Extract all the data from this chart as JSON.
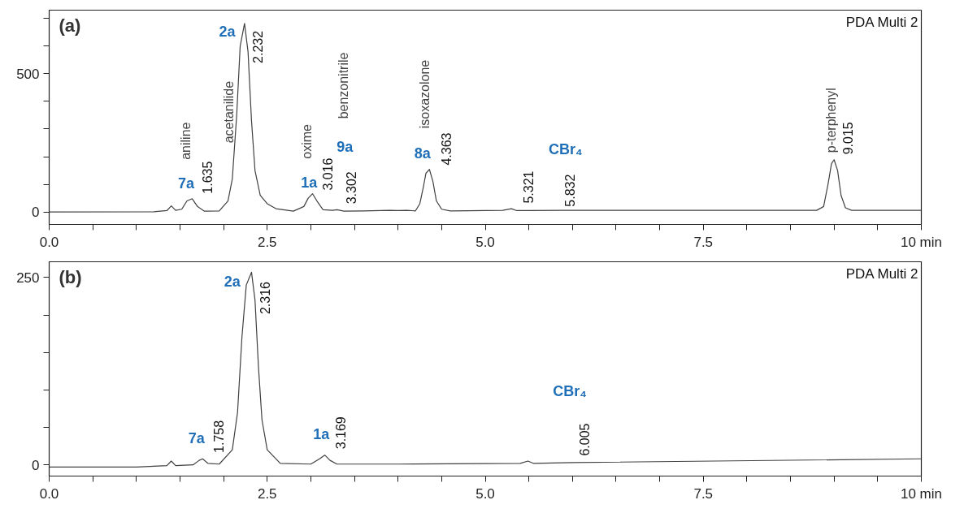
{
  "chart_data": [
    {
      "type": "line",
      "xlim": [
        0,
        10
      ],
      "ylim": [
        -45,
        730
      ],
      "grid": false,
      "marker": "none",
      "xticks": [
        {
          "value": 0,
          "label": "0.0"
        },
        {
          "value": 0.5,
          "label": null
        },
        {
          "value": 1,
          "label": null
        },
        {
          "value": 1.5,
          "label": null
        },
        {
          "value": 2,
          "label": null
        },
        {
          "value": 2.5,
          "label": "2.5"
        },
        {
          "value": 3,
          "label": null
        },
        {
          "value": 3.5,
          "label": null
        },
        {
          "value": 4,
          "label": null
        },
        {
          "value": 4.5,
          "label": null
        },
        {
          "value": 5,
          "label": "5.0"
        },
        {
          "value": 5.5,
          "label": null
        },
        {
          "value": 6,
          "label": null
        },
        {
          "value": 6.5,
          "label": null
        },
        {
          "value": 7,
          "label": null
        },
        {
          "value": 7.5,
          "label": "7.5"
        },
        {
          "value": 8,
          "label": null
        },
        {
          "value": 8.5,
          "label": null
        },
        {
          "value": 9,
          "label": null
        },
        {
          "value": 9.5,
          "label": null
        },
        {
          "value": 10,
          "label": "10 min"
        }
      ],
      "yticks": [
        0,
        {
          "value": 100,
          "label": null
        },
        {
          "value": 200,
          "label": null
        },
        {
          "value": 300,
          "label": null
        },
        {
          "value": 400,
          "label": null
        },
        500,
        {
          "value": 600,
          "label": null
        },
        {
          "value": 700,
          "label": null
        }
      ],
      "x": [
        0,
        1.2,
        1.35,
        1.4,
        1.45,
        1.52,
        1.58,
        1.64,
        1.7,
        1.78,
        1.95,
        2.05,
        2.1,
        2.15,
        2.19,
        2.24,
        2.28,
        2.32,
        2.36,
        2.42,
        2.5,
        2.6,
        2.8,
        2.92,
        2.97,
        3.02,
        3.07,
        3.14,
        3.25,
        3.3,
        3.38,
        3.6,
        3.9,
        4.0,
        4.1,
        4.2,
        4.25,
        4.29,
        4.32,
        4.36,
        4.4,
        4.44,
        4.5,
        4.6,
        5.0,
        5.2,
        5.3,
        5.36,
        5.5,
        5.9,
        6.1,
        8.8,
        8.88,
        8.93,
        8.97,
        9.0,
        9.04,
        9.08,
        9.13,
        9.2,
        10
      ],
      "series": [
        {
          "color": "#404040",
          "values": [
            0,
            1,
            5,
            22,
            6,
            10,
            40,
            48,
            20,
            3,
            4,
            40,
            120,
            350,
            600,
            682,
            580,
            330,
            150,
            60,
            30,
            12,
            3,
            20,
            50,
            66,
            40,
            8,
            6,
            8,
            3,
            4,
            6,
            5,
            6,
            4,
            30,
            90,
            140,
            154,
            110,
            40,
            10,
            4,
            5,
            6,
            12,
            5,
            5,
            6,
            6,
            6,
            20,
            100,
            175,
            189,
            150,
            60,
            15,
            6,
            6
          ]
        }
      ],
      "annotations": [
        "(a)",
        "PDA Multi 2",
        "aniline",
        "1.635",
        "7a",
        "acetanilide",
        "2a",
        "2.232",
        "oxime",
        "1a",
        "3.016",
        "9a",
        "3.302",
        "benzonitrile",
        "8a",
        "isoxazolone",
        "4.363",
        "5.321",
        "CBr₄",
        "5.832",
        "p-terphenyl",
        "9.015"
      ]
    },
    {
      "type": "line",
      "xlim": [
        0,
        10
      ],
      "ylim": [
        -15,
        271
      ],
      "grid": false,
      "marker": "none",
      "xticks": [
        {
          "value": 0,
          "label": "0.0"
        },
        {
          "value": 0.5,
          "label": null
        },
        {
          "value": 1,
          "label": null
        },
        {
          "value": 1.5,
          "label": null
        },
        {
          "value": 2,
          "label": null
        },
        {
          "value": 2.5,
          "label": "2.5"
        },
        {
          "value": 3,
          "label": null
        },
        {
          "value": 3.5,
          "label": null
        },
        {
          "value": 4,
          "label": null
        },
        {
          "value": 4.5,
          "label": null
        },
        {
          "value": 5,
          "label": "5.0"
        },
        {
          "value": 5.5,
          "label": null
        },
        {
          "value": 6,
          "label": null
        },
        {
          "value": 6.5,
          "label": null
        },
        {
          "value": 7,
          "label": null
        },
        {
          "value": 7.5,
          "label": "7.5"
        },
        {
          "value": 8,
          "label": null
        },
        {
          "value": 8.5,
          "label": null
        },
        {
          "value": 9,
          "label": null
        },
        {
          "value": 9.5,
          "label": null
        },
        {
          "value": 10,
          "label": "10 min"
        }
      ],
      "yticks": [
        0,
        {
          "value": 50,
          "label": null
        },
        {
          "value": 100,
          "label": null
        },
        {
          "value": 150,
          "label": null
        },
        {
          "value": 200,
          "label": null
        },
        250
      ],
      "x": [
        0,
        1.0,
        1.35,
        1.4,
        1.45,
        1.65,
        1.72,
        1.76,
        1.82,
        1.95,
        2.1,
        2.16,
        2.21,
        2.26,
        2.32,
        2.36,
        2.4,
        2.44,
        2.5,
        2.65,
        3.0,
        3.1,
        3.16,
        3.22,
        3.3,
        4.0,
        5.4,
        5.49,
        5.55,
        6.0,
        10
      ],
      "series": [
        {
          "color": "#404040",
          "values": [
            -3,
            -3,
            -1,
            5,
            -1,
            0,
            6,
            8,
            2,
            1,
            20,
            70,
            170,
            240,
            257,
            220,
            130,
            60,
            20,
            2,
            1,
            8,
            13,
            6,
            1,
            1,
            2,
            5,
            2,
            3,
            8
          ]
        }
      ],
      "annotations": [
        "(b)",
        "PDA Multi 2",
        "2a",
        "2.316",
        "7a",
        "1.758",
        "1a",
        "3.169",
        "CBr₄",
        "6.005"
      ]
    }
  ]
}
